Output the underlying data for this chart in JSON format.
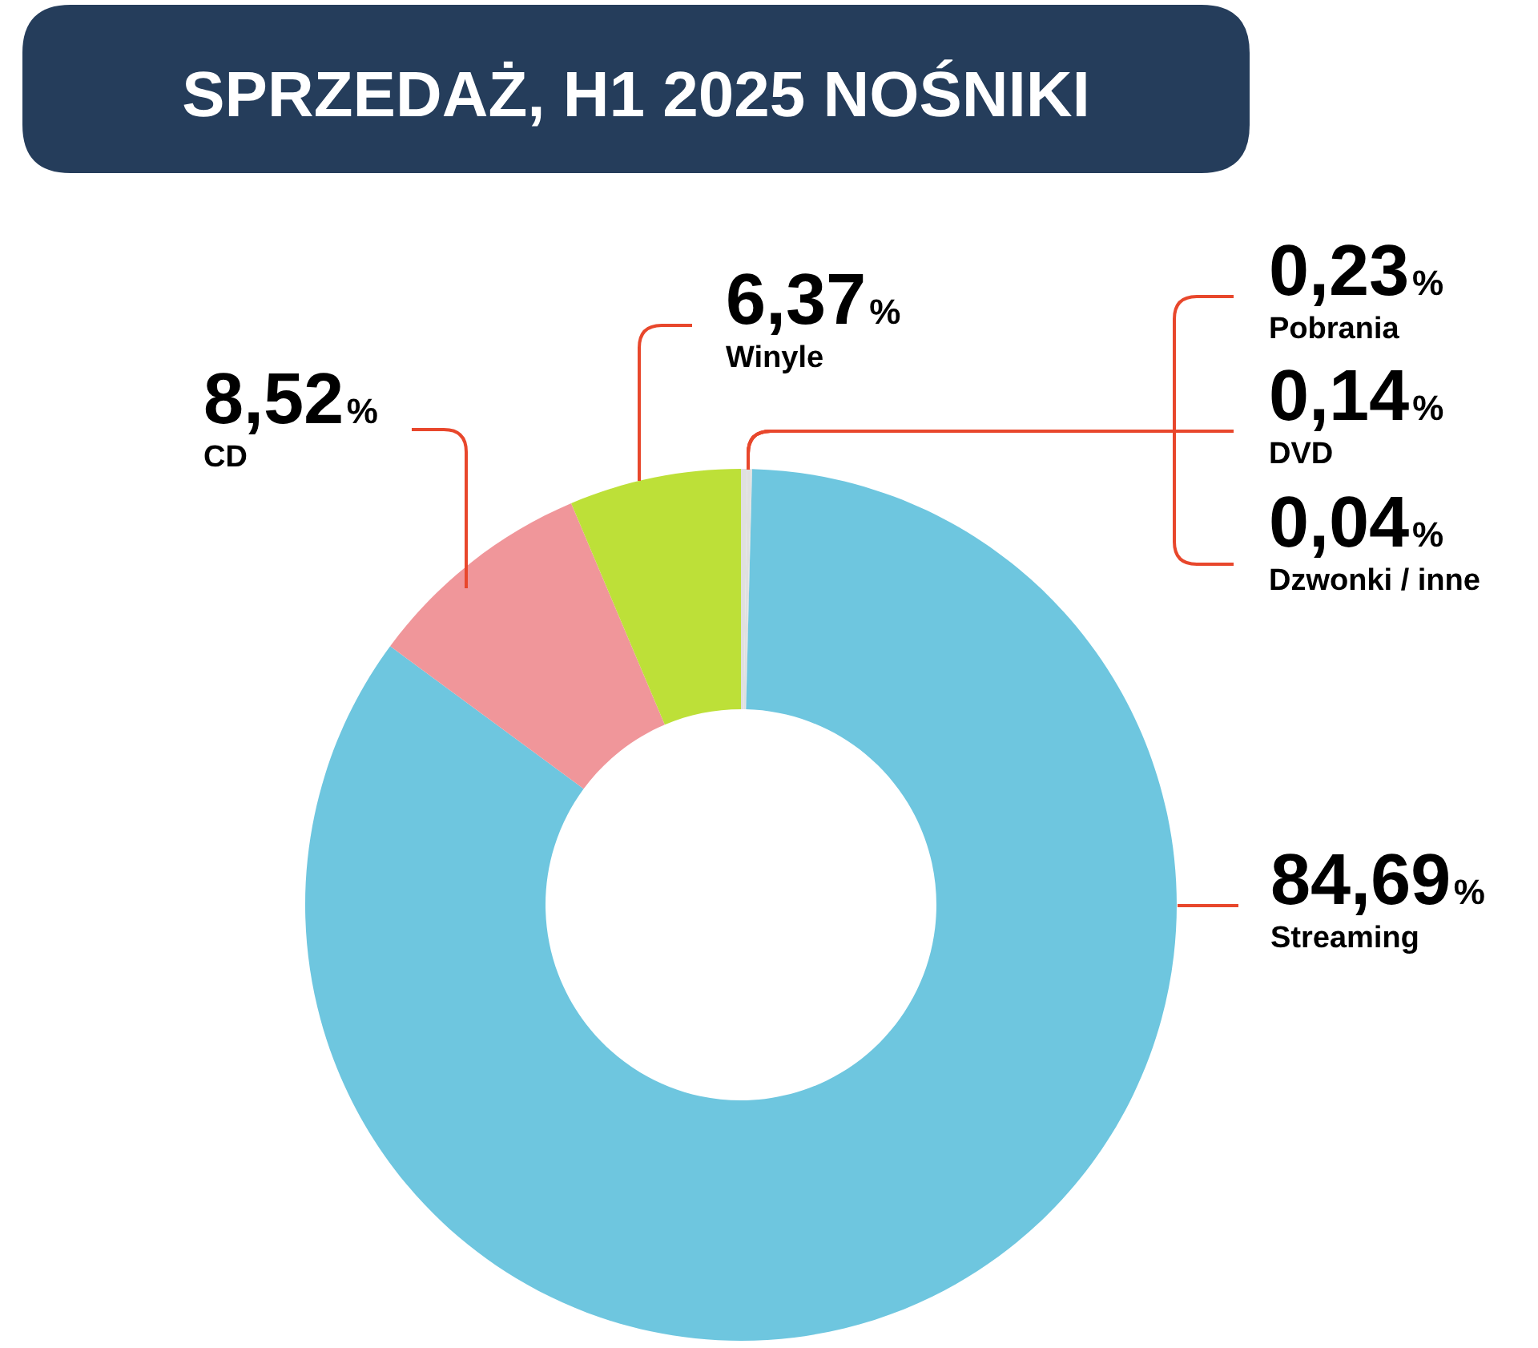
{
  "chart_data": {
    "type": "donut",
    "title": "SPRZEDAŻ, H1 2025 NOŚNIKI",
    "categories": [
      "Pobrania",
      "DVD",
      "Dzwonki / inne",
      "Streaming",
      "CD",
      "Winyle"
    ],
    "values": [
      0.23,
      0.14,
      0.04,
      84.69,
      8.52,
      6.37
    ],
    "colors": [
      "#e0e0e0",
      "#e0e0e0",
      "#e0e0e0",
      "#6ec6df",
      "#f0969a",
      "#bde038"
    ],
    "value_labels": [
      "0,23%",
      "0,14%",
      "0,04%",
      "84,69%",
      "8,52%",
      "6,37%"
    ]
  }
}
